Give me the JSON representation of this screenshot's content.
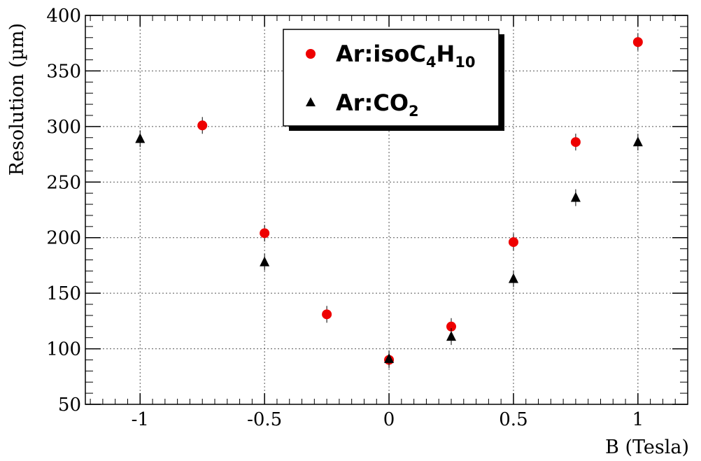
{
  "chart_data": {
    "type": "scatter",
    "xlabel": "B (Tesla)",
    "ylabel": "Resolution (µm)",
    "xlim": [
      -1.22,
      1.2
    ],
    "ylim": [
      50,
      400
    ],
    "x_ticks": [
      -1,
      -0.5,
      0,
      0.5,
      1
    ],
    "x_tick_labels": [
      "-1",
      "-0.5",
      "0",
      "0.5",
      "1"
    ],
    "y_ticks": [
      50,
      100,
      150,
      200,
      250,
      300,
      350,
      400
    ],
    "y_tick_labels": [
      "50",
      "100",
      "150",
      "200",
      "250",
      "300",
      "350",
      "400"
    ],
    "grid": true,
    "legend_position": "top-center",
    "series": [
      {
        "name": "Ar:isoC4H10",
        "legend_parts": {
          "base": "Ar:isoC",
          "sub1": "4",
          "mid": "H",
          "sub2": "10"
        },
        "marker": "circle",
        "color": "#ee0000",
        "x": [
          -0.75,
          -0.5,
          -0.25,
          0,
          0.25,
          0.5,
          0.75,
          1
        ],
        "y": [
          301,
          204,
          131,
          90,
          120,
          196,
          286,
          376
        ]
      },
      {
        "name": "Ar:CO2",
        "legend_parts": {
          "base": "Ar:CO",
          "sub1": "2"
        },
        "marker": "triangle",
        "color": "#000000",
        "x": [
          -1,
          -0.5,
          0,
          0.25,
          0.5,
          0.75,
          1
        ],
        "y": [
          289,
          178,
          91,
          111,
          163,
          236,
          286
        ]
      }
    ]
  }
}
